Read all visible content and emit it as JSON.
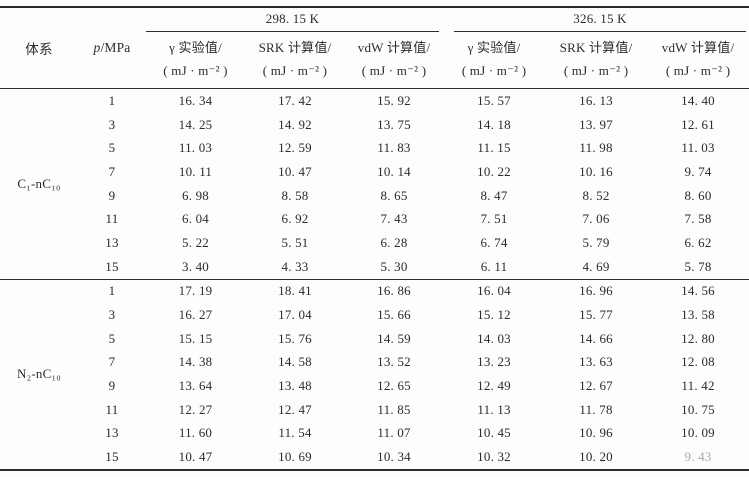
{
  "header": {
    "system": "体系",
    "p_symbol": "p",
    "p_unit": "/MPa",
    "temps": [
      "298. 15 K",
      "326. 15 K"
    ],
    "cols": [
      {
        "l1": "γ 实验值/",
        "l2": "( mJ · m⁻² )"
      },
      {
        "l1": "SRK 计算值/",
        "l2": "( mJ · m⁻² )"
      },
      {
        "l1": "vdW 计算值/",
        "l2": "( mJ · m⁻² )"
      },
      {
        "l1": "γ 实验值/",
        "l2": "( mJ · m⁻² )"
      },
      {
        "l1": "SRK 计算值/",
        "l2": "( mJ · m⁻² )"
      },
      {
        "l1": "vdW 计算值/",
        "l2": "( mJ · m⁻² )"
      }
    ]
  },
  "groups": [
    {
      "system": "C₁-nC₁₀",
      "rows": [
        [
          "1",
          "16. 34",
          "17. 42",
          "15. 92",
          "15. 57",
          "16. 13",
          "14. 40"
        ],
        [
          "3",
          "14. 25",
          "14. 92",
          "13. 75",
          "14. 18",
          "13. 97",
          "12. 61"
        ],
        [
          "5",
          "11. 03",
          "12. 59",
          "11. 83",
          "11. 15",
          "11. 98",
          "11. 03"
        ],
        [
          "7",
          "10. 11",
          "10. 47",
          "10. 14",
          "10. 22",
          "10. 16",
          "9. 74"
        ],
        [
          "9",
          "6. 98",
          "8. 58",
          "8. 65",
          "8. 47",
          "8. 52",
          "8. 60"
        ],
        [
          "11",
          "6. 04",
          "6. 92",
          "7. 43",
          "7. 51",
          "7. 06",
          "7. 58"
        ],
        [
          "13",
          "5. 22",
          "5. 51",
          "6. 28",
          "6. 74",
          "5. 79",
          "6. 62"
        ],
        [
          "15",
          "3. 40",
          "4. 33",
          "5. 30",
          "6. 11",
          "4. 69",
          "5. 78"
        ]
      ]
    },
    {
      "system": "N₂-nC₁₀",
      "rows": [
        [
          "1",
          "17. 19",
          "18. 41",
          "16. 86",
          "16. 04",
          "16. 96",
          "14. 56"
        ],
        [
          "3",
          "16. 27",
          "17. 04",
          "15. 66",
          "15. 12",
          "15. 77",
          "13. 58"
        ],
        [
          "5",
          "15. 15",
          "15. 76",
          "14. 59",
          "14. 03",
          "14. 66",
          "12. 80"
        ],
        [
          "7",
          "14. 38",
          "14. 58",
          "13. 52",
          "13. 23",
          "13. 63",
          "12. 08"
        ],
        [
          "9",
          "13. 64",
          "13. 48",
          "12. 65",
          "12. 49",
          "12. 67",
          "11. 42"
        ],
        [
          "11",
          "12. 27",
          "12. 47",
          "11. 85",
          "11. 13",
          "11. 78",
          "10. 75"
        ],
        [
          "13",
          "11. 60",
          "11. 54",
          "11. 07",
          "10. 45",
          "10. 96",
          "10. 09"
        ],
        [
          "15",
          "10. 47",
          "10. 69",
          "10. 34",
          "10. 32",
          "10. 20",
          "9. 43"
        ]
      ]
    }
  ]
}
